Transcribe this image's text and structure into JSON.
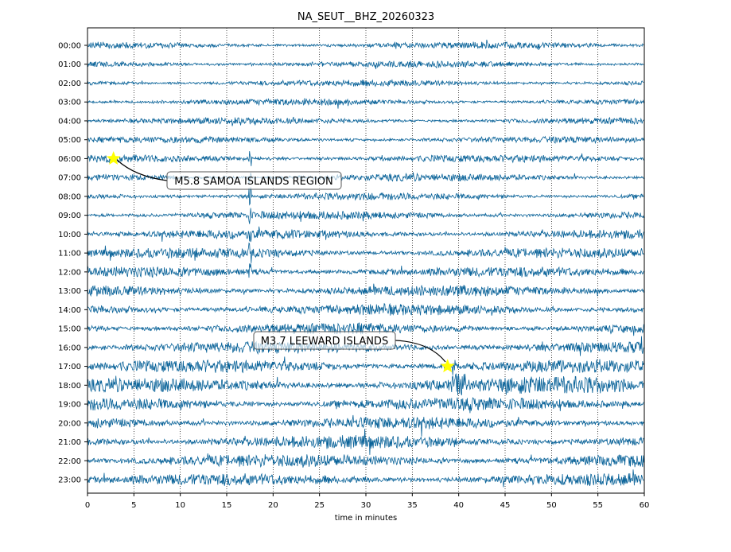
{
  "chart_data": {
    "type": "line",
    "subtype": "seismogram-dayplot",
    "title": "NA_SEUT__BHZ_20260323",
    "xlabel": "time in minutes",
    "ylabel": "",
    "xlim": [
      0,
      60
    ],
    "xticks": [
      "0",
      "5",
      "10",
      "15",
      "20",
      "25",
      "30",
      "35",
      "40",
      "45",
      "50",
      "55",
      "60"
    ],
    "xtick_values": [
      0,
      5,
      10,
      15,
      20,
      25,
      30,
      35,
      40,
      45,
      50,
      55,
      60
    ],
    "yticks": [
      "00:00",
      "01:00",
      "02:00",
      "03:00",
      "04:00",
      "05:00",
      "06:00",
      "07:00",
      "08:00",
      "09:00",
      "10:00",
      "11:00",
      "12:00",
      "13:00",
      "14:00",
      "15:00",
      "16:00",
      "17:00",
      "18:00",
      "19:00",
      "20:00",
      "21:00",
      "22:00",
      "23:00"
    ],
    "grid": "vertical dotted every 5 minutes",
    "trace_color": "#0a6399",
    "row_noise_level": [
      0.35,
      0.35,
      0.35,
      0.35,
      0.35,
      0.35,
      0.4,
      0.4,
      0.4,
      0.45,
      0.5,
      0.55,
      0.55,
      0.6,
      0.6,
      0.6,
      0.65,
      0.7,
      0.75,
      0.7,
      0.65,
      0.7,
      0.7,
      0.65
    ],
    "events": [
      {
        "label": "M5.8 SAMOA ISLANDS REGION",
        "row": "06:00",
        "minute": 2.8,
        "marker_color": "#ffff00"
      },
      {
        "label": "M3.7 LEEWARD ISLANDS",
        "row": "17:00",
        "minute": 38.8,
        "marker_color": "#ffff00"
      }
    ]
  }
}
